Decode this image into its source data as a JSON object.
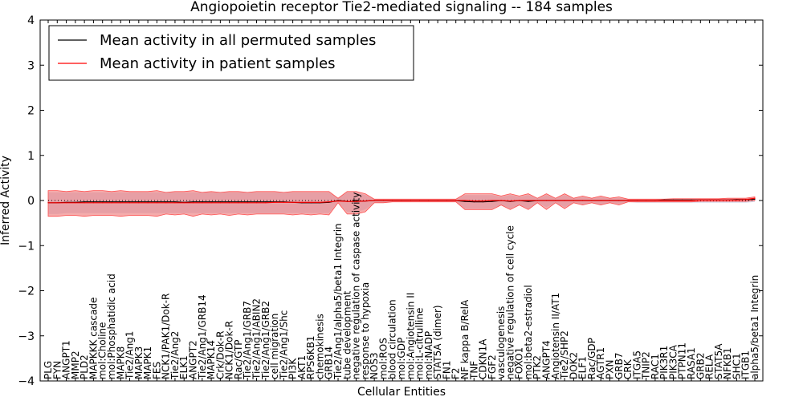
{
  "chart_data": {
    "type": "line",
    "title": "Angiopoietin receptor Tie2-mediated signaling -- 184 samples",
    "xlabel": "Cellular Entities",
    "ylabel": "Inferred Activity",
    "ylim": [
      -4,
      4
    ],
    "yticks": [
      -4,
      -3,
      -2,
      -1,
      0,
      1,
      2,
      3,
      4
    ],
    "ytick_labels": [
      "−4",
      "−3",
      "−2",
      "−1",
      "0",
      "1",
      "2",
      "3",
      "4"
    ],
    "legend": {
      "placement": "top-left",
      "entries": [
        {
          "label": "Mean activity in all permuted samples",
          "color": "#000000"
        },
        {
          "label": "Mean activity in patient samples",
          "color": "#ff0000"
        }
      ]
    },
    "categories": [
      "PLG",
      "FYN",
      "ANGPT1",
      "MMP2",
      "PLD2",
      "MAPKKK cascade",
      "mol:Choline",
      "mol:Phosphatidic acid",
      "MAPK8",
      "Tie2/Ang1",
      "MAPK3",
      "MAPK1",
      "FES",
      "NCK1/PAK1/Dok-R",
      "Tie2/Ang2",
      "ELK1",
      "ANGPT2",
      "Tie2/Ang1/GRB14",
      "MAPK14",
      "Crk/Dok-R",
      "NCK1/Dok-R",
      "Rac/GTP",
      "Tie2/Ang1/GRB7",
      "Tie2/Ang1/ABIN2",
      "Tie2/Ang1/GRB2",
      "cell migration",
      "Tie2/Ang1/Shc",
      "PI3K",
      "AKT1",
      "RPS6KB1",
      "chemokinesis",
      "GRB14",
      "Tie2/Ang1/alpha5/beta1 Integrin",
      "tube development",
      "negative regulation of caspase activity",
      "response to hypoxia",
      "NOS3",
      "mol:ROS",
      "blood circulation",
      "mol:GDP",
      "mol:Angiotensin II",
      "mol:L-citrulline",
      "mol:NADP",
      "STAT5A (dimer)",
      "FN1",
      "F2",
      "NF kappa B/RelA",
      "TNF",
      "CDKN1A",
      "FGF2",
      "vasculogenesis",
      "negative regulation of cell cycle",
      "FOXO1",
      "mol:beta2-estradiol",
      "PTK2",
      "ANGPT4",
      "Angiotensin II/AT1",
      "Tie2/SHP2",
      "DOK2",
      "ELF1",
      "Rac/GDP",
      "AGTR1",
      "PXN",
      "GRB7",
      "CRK",
      "ITGA5",
      "TNIP2",
      "RAC1",
      "PIK3R1",
      "PIK3CA",
      "PTPN11",
      "RASA1",
      "GRB2",
      "RELA",
      "STAT5A",
      "NFKB1",
      "SHC1",
      "ITGB1",
      "alpha5/beta1 Integrin"
    ],
    "series": [
      {
        "name": "Mean activity in all permuted samples",
        "color": "#000000",
        "values": [
          -0.05,
          -0.05,
          -0.04,
          -0.04,
          -0.03,
          -0.03,
          -0.03,
          -0.03,
          -0.03,
          -0.03,
          -0.03,
          -0.03,
          -0.03,
          -0.03,
          -0.03,
          -0.04,
          -0.03,
          -0.03,
          -0.03,
          -0.03,
          -0.03,
          -0.03,
          -0.03,
          -0.03,
          -0.03,
          -0.03,
          -0.03,
          -0.04,
          -0.05,
          -0.05,
          -0.05,
          -0.04,
          0.0,
          -0.02,
          -0.02,
          -0.01,
          0.0,
          0.0,
          0.0,
          0.0,
          0.0,
          0.0,
          0.0,
          0.0,
          0.0,
          0.0,
          -0.02,
          -0.03,
          -0.03,
          -0.02,
          0.0,
          -0.02,
          0.0,
          -0.02,
          0.0,
          0.0,
          0.0,
          0.0,
          0.0,
          0.0,
          0.0,
          0.0,
          0.0,
          0.0,
          0.0,
          0.0,
          0.0,
          0.0,
          0.01,
          0.01,
          0.01,
          0.01,
          0.01,
          0.01,
          0.01,
          0.01,
          0.02,
          0.02,
          0.03
        ]
      },
      {
        "name": "Mean activity in patient samples",
        "color": "#ff0000",
        "values": [
          -0.05,
          -0.05,
          -0.05,
          -0.05,
          -0.05,
          -0.05,
          -0.05,
          -0.05,
          -0.05,
          -0.05,
          -0.05,
          -0.05,
          -0.05,
          -0.05,
          -0.05,
          -0.05,
          -0.05,
          -0.05,
          -0.05,
          -0.05,
          -0.05,
          -0.05,
          -0.05,
          -0.05,
          -0.05,
          -0.04,
          -0.04,
          -0.04,
          -0.04,
          -0.04,
          -0.04,
          -0.03,
          -0.01,
          -0.02,
          -0.02,
          -0.01,
          0.0,
          0.0,
          0.0,
          0.0,
          0.0,
          0.0,
          0.0,
          0.0,
          0.0,
          0.0,
          0.0,
          -0.01,
          -0.01,
          0.0,
          0.0,
          -0.01,
          0.0,
          0.0,
          0.0,
          0.0,
          0.0,
          0.0,
          0.0,
          0.0,
          0.0,
          0.0,
          0.0,
          0.0,
          0.0,
          0.0,
          0.0,
          0.0,
          0.0,
          0.0,
          0.0,
          0.0,
          0.01,
          0.01,
          0.01,
          0.01,
          0.01,
          0.02,
          0.05
        ]
      }
    ],
    "band_patient": {
      "lower": [
        -0.35,
        -0.35,
        -0.33,
        -0.33,
        -0.35,
        -0.33,
        -0.33,
        -0.33,
        -0.35,
        -0.33,
        -0.33,
        -0.33,
        -0.35,
        -0.3,
        -0.32,
        -0.3,
        -0.35,
        -0.3,
        -0.32,
        -0.3,
        -0.33,
        -0.3,
        -0.32,
        -0.3,
        -0.3,
        -0.3,
        -0.3,
        -0.32,
        -0.3,
        -0.32,
        -0.3,
        -0.32,
        -0.05,
        -0.3,
        -0.3,
        -0.25,
        -0.05,
        -0.05,
        -0.03,
        -0.03,
        -0.03,
        -0.03,
        -0.03,
        -0.03,
        -0.03,
        -0.03,
        -0.2,
        -0.2,
        -0.2,
        -0.2,
        -0.1,
        -0.2,
        -0.1,
        -0.2,
        -0.05,
        -0.2,
        -0.05,
        -0.18,
        -0.05,
        -0.1,
        -0.05,
        -0.1,
        -0.05,
        -0.1,
        -0.03,
        -0.03,
        -0.03,
        -0.03,
        -0.03,
        -0.03,
        -0.03,
        -0.03,
        -0.02,
        -0.02,
        -0.02,
        -0.02,
        -0.02,
        -0.02,
        0.0
      ],
      "upper": [
        0.22,
        0.22,
        0.2,
        0.22,
        0.2,
        0.22,
        0.22,
        0.2,
        0.22,
        0.2,
        0.2,
        0.2,
        0.22,
        0.18,
        0.2,
        0.2,
        0.22,
        0.18,
        0.2,
        0.18,
        0.2,
        0.2,
        0.18,
        0.2,
        0.2,
        0.2,
        0.18,
        0.2,
        0.2,
        0.2,
        0.2,
        0.2,
        0.05,
        0.2,
        0.2,
        0.15,
        0.03,
        0.03,
        0.03,
        0.03,
        0.03,
        0.03,
        0.03,
        0.03,
        0.03,
        0.03,
        0.15,
        0.15,
        0.15,
        0.15,
        0.1,
        0.15,
        0.1,
        0.15,
        0.05,
        0.15,
        0.05,
        0.15,
        0.05,
        0.1,
        0.05,
        0.1,
        0.05,
        0.08,
        0.03,
        0.03,
        0.03,
        0.03,
        0.03,
        0.04,
        0.04,
        0.04,
        0.04,
        0.04,
        0.04,
        0.05,
        0.05,
        0.05,
        0.08
      ]
    },
    "band_permuted": {
      "lower": [
        -0.3,
        -0.3,
        -0.28,
        -0.28,
        -0.28,
        -0.28,
        -0.28,
        -0.28,
        -0.28,
        -0.28,
        -0.28,
        -0.28,
        -0.28,
        -0.28,
        -0.28,
        -0.28,
        -0.28,
        -0.28,
        -0.28,
        -0.28,
        -0.28,
        -0.28,
        -0.28,
        -0.28,
        -0.28,
        -0.28,
        -0.28,
        -0.28,
        -0.28,
        -0.28,
        -0.28,
        -0.28,
        -0.05,
        -0.25,
        -0.25,
        -0.2,
        -0.05,
        -0.05,
        -0.03,
        -0.03,
        -0.03,
        -0.03,
        -0.03,
        -0.03,
        -0.03,
        -0.03,
        -0.18,
        -0.18,
        -0.18,
        -0.18,
        -0.1,
        -0.18,
        -0.1,
        -0.18,
        -0.05,
        -0.15,
        -0.05,
        -0.15,
        -0.05,
        -0.1,
        -0.05,
        -0.1,
        -0.05,
        -0.08,
        -0.03,
        -0.05,
        -0.05,
        -0.05,
        -0.05,
        -0.05,
        -0.05,
        -0.05,
        -0.05,
        -0.05,
        -0.05,
        -0.05,
        -0.05,
        -0.05,
        -0.03
      ],
      "upper": [
        0.18,
        0.18,
        0.18,
        0.18,
        0.18,
        0.18,
        0.18,
        0.18,
        0.18,
        0.18,
        0.18,
        0.18,
        0.18,
        0.18,
        0.18,
        0.18,
        0.18,
        0.18,
        0.18,
        0.18,
        0.18,
        0.18,
        0.18,
        0.18,
        0.18,
        0.18,
        0.18,
        0.18,
        0.18,
        0.18,
        0.18,
        0.18,
        0.05,
        0.18,
        0.18,
        0.12,
        0.03,
        0.03,
        0.03,
        0.03,
        0.03,
        0.03,
        0.03,
        0.03,
        0.03,
        0.03,
        0.12,
        0.12,
        0.12,
        0.12,
        0.08,
        0.12,
        0.08,
        0.12,
        0.05,
        0.12,
        0.05,
        0.12,
        0.05,
        0.08,
        0.05,
        0.08,
        0.05,
        0.06,
        0.03,
        0.03,
        0.03,
        0.03,
        0.03,
        0.03,
        0.03,
        0.03,
        0.04,
        0.04,
        0.04,
        0.04,
        0.04,
        0.04,
        0.06
      ]
    }
  }
}
